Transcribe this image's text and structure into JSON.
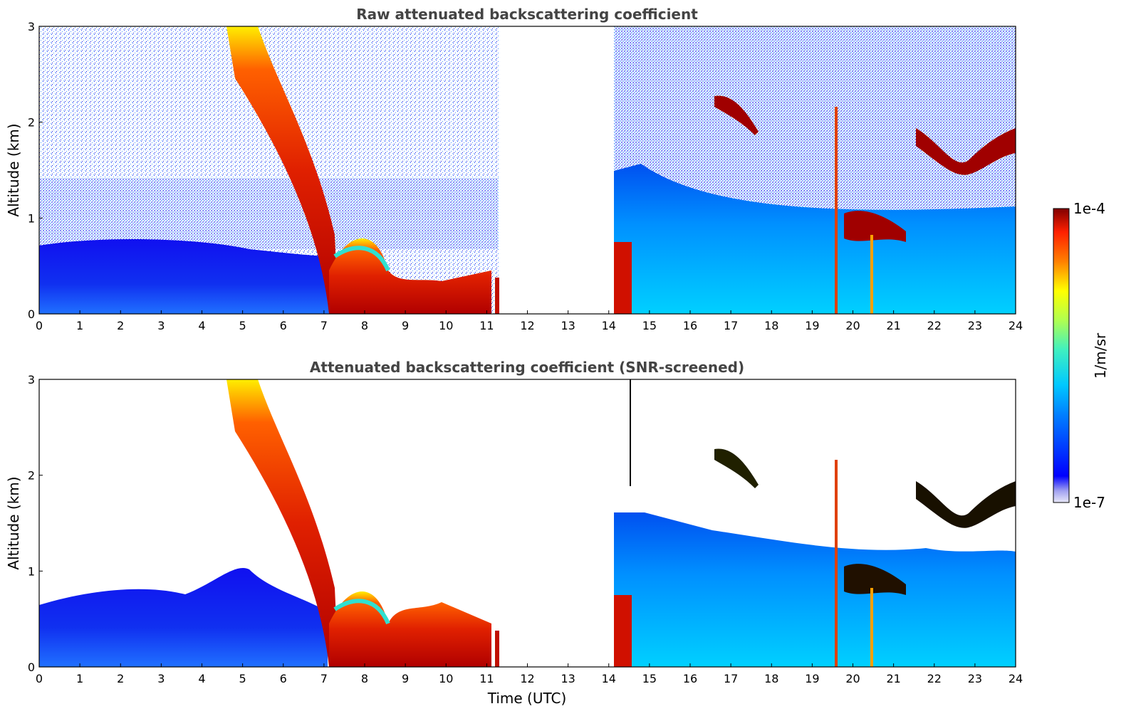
{
  "chart_data": [
    {
      "type": "heatmap",
      "title": "Raw attenuated backscattering coefficient",
      "xlabel": "",
      "ylabel": "Altitude (km)",
      "xlim": [
        0,
        24
      ],
      "ylim": [
        0,
        3
      ],
      "xticks": [
        "0",
        "1",
        "2",
        "3",
        "4",
        "5",
        "6",
        "7",
        "8",
        "9",
        "10",
        "11",
        "12",
        "13",
        "14",
        "15",
        "16",
        "17",
        "18",
        "19",
        "20",
        "21",
        "22",
        "23",
        "24"
      ],
      "yticks": [
        "0",
        "1",
        "2",
        "3"
      ],
      "data_gap_hours": [
        11.3,
        14.1
      ],
      "features": [
        {
          "time": [
            4.7,
            7.3
          ],
          "altitude_km": [
            3.0,
            0.0
          ],
          "level": "high"
        },
        {
          "time": [
            7.3,
            11.2
          ],
          "altitude_km": [
            0.0,
            0.4
          ],
          "level": "high"
        },
        {
          "time": [
            16.6,
            17.7
          ],
          "altitude_km": [
            1.9,
            2.3
          ],
          "level": "1e-4"
        },
        {
          "time": [
            21.6,
            24.0
          ],
          "altitude_km": [
            1.5,
            1.9
          ],
          "level": "1e-4"
        },
        {
          "time": [
            19.8,
            21.3
          ],
          "altitude_km": [
            0.7,
            1.0
          ],
          "level": "1e-4"
        }
      ]
    },
    {
      "type": "heatmap",
      "title": "Attenuated backscattering coefficient (SNR-screened)",
      "xlabel": "Time (UTC)",
      "ylabel": "Altitude (km)",
      "xlim": [
        0,
        24
      ],
      "ylim": [
        0,
        3
      ],
      "xticks": [
        "0",
        "1",
        "2",
        "3",
        "4",
        "5",
        "6",
        "7",
        "8",
        "9",
        "10",
        "11",
        "12",
        "13",
        "14",
        "15",
        "16",
        "17",
        "18",
        "19",
        "20",
        "21",
        "22",
        "23",
        "24"
      ],
      "yticks": [
        "0",
        "1",
        "2",
        "3"
      ],
      "data_gap_hours": [
        11.3,
        14.1
      ]
    }
  ],
  "colorbar": {
    "label": "1/m/sr",
    "max_label": "1e-4",
    "min_label": "1e-7",
    "scale": "log",
    "colormap": "jet"
  }
}
